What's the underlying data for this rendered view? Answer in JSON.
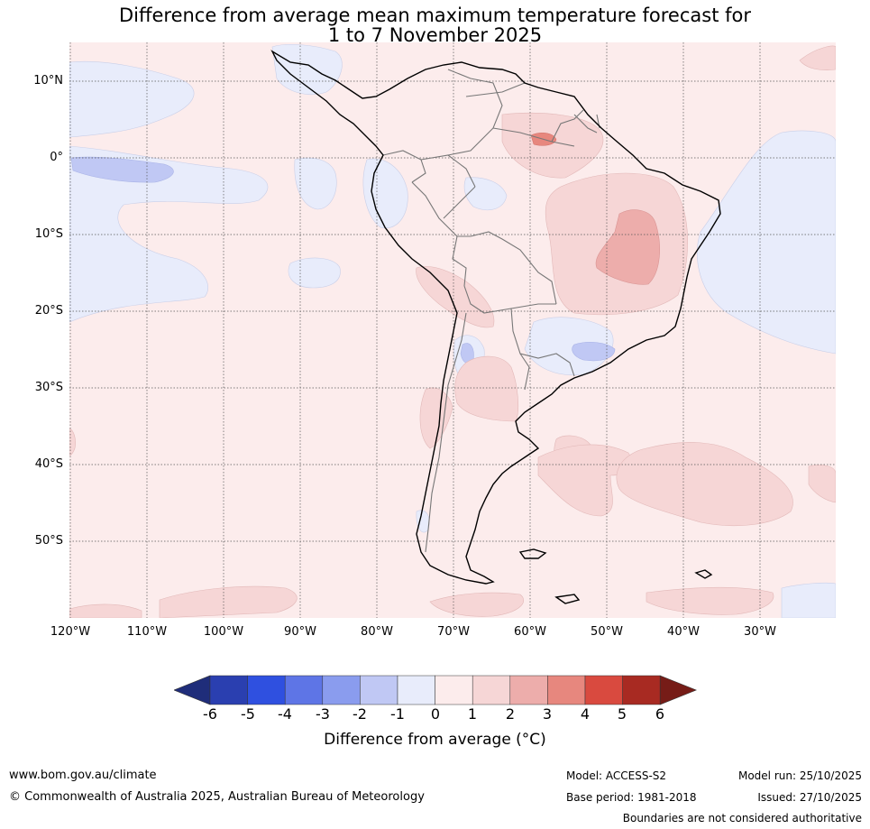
{
  "title": {
    "line1": "Difference from average mean maximum temperature forecast for",
    "line2": "1 to 7 November 2025"
  },
  "map": {
    "lat_labels": [
      "10°N",
      "0°",
      "10°S",
      "20°S",
      "30°S",
      "40°S",
      "50°S"
    ],
    "lon_labels": [
      "120°W",
      "110°W",
      "100°W",
      "90°W",
      "80°W",
      "70°W",
      "60°W",
      "50°W",
      "40°W",
      "30°W"
    ]
  },
  "colorbar": {
    "ticks": [
      "-6",
      "-5",
      "-4",
      "-3",
      "-2",
      "-1",
      "0",
      "1",
      "2",
      "3",
      "4",
      "5",
      "6"
    ],
    "colors": [
      "#1f2d7a",
      "#2a3fb0",
      "#2f50e0",
      "#5e75e6",
      "#8a9cee",
      "#c0c8f4",
      "#e8ecfb",
      "#fcecec",
      "#f6d6d6",
      "#edadab",
      "#e7877e",
      "#d94a3f",
      "#a82a22",
      "#761c17"
    ],
    "label": "Difference from average (°C)"
  },
  "footer": {
    "website": "www.bom.gov.au/climate",
    "copyright": "© Commonwealth of Australia 2025, Australian Bureau of Meteorology",
    "model": "Model: ACCESS-S2",
    "base_period": "Base period: 1981-2018",
    "model_run": "Model run: 25/10/2025",
    "issued": "Issued: 27/10/2025",
    "disclaimer": "Boundaries are not considered authoritative"
  }
}
